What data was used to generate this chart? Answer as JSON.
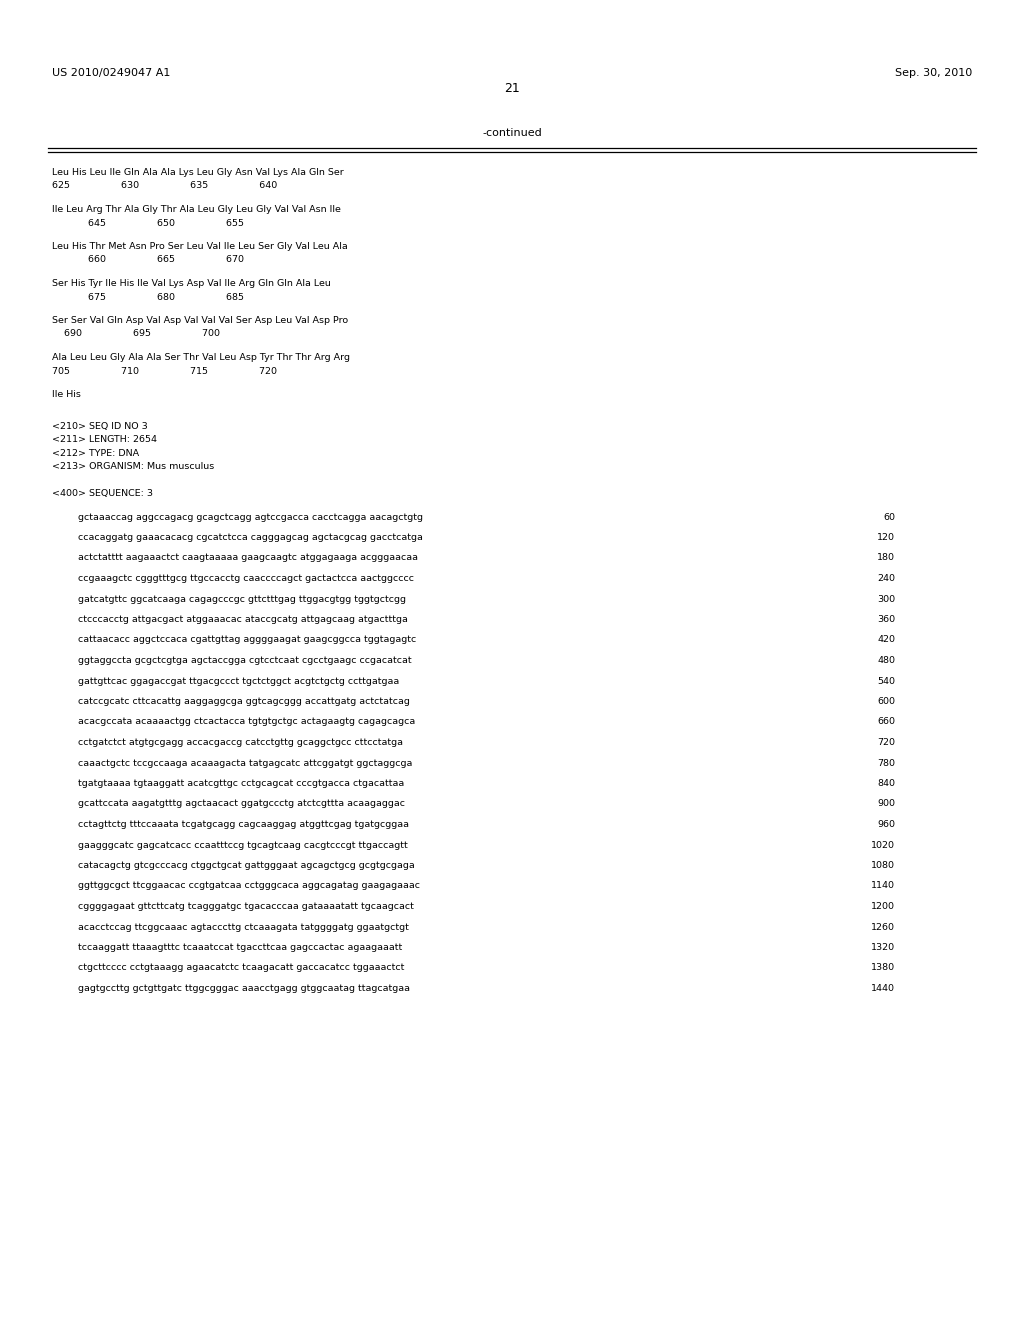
{
  "background_color": "#ffffff",
  "header_left": "US 2010/0249047 A1",
  "header_right": "Sep. 30, 2010",
  "page_number": "21",
  "continued_label": "-continued",
  "monospace_font_size": 6.8,
  "header_font_size": 8.0,
  "page_num_font_size": 9.0,
  "amino_blocks": [
    [
      "Leu His Leu Ile Gln Ala Ala Lys Leu Gly Asn Val Lys Ala Gln Ser",
      "625                 630                 635                 640"
    ],
    [
      "Ile Leu Arg Thr Ala Gly Thr Ala Leu Gly Leu Gly Val Val Asn Ile",
      "            645                 650                 655"
    ],
    [
      "Leu His Thr Met Asn Pro Ser Leu Val Ile Leu Ser Gly Val Leu Ala",
      "            660                 665                 670"
    ],
    [
      "Ser His Tyr Ile His Ile Val Lys Asp Val Ile Arg Gln Gln Ala Leu",
      "            675                 680                 685"
    ],
    [
      "Ser Ser Val Gln Asp Val Asp Val Val Val Ser Asp Leu Val Asp Pro",
      "    690                 695                 700"
    ],
    [
      "Ala Leu Leu Gly Ala Ala Ser Thr Val Leu Asp Tyr Thr Thr Arg Arg",
      "705                 710                 715                 720"
    ],
    [
      "Ile His"
    ]
  ],
  "metadata_lines": [
    "<210> SEQ ID NO 3",
    "<211> LENGTH: 2654",
    "<212> TYPE: DNA",
    "<213> ORGANISM: Mus musculus",
    "",
    "<400> SEQUENCE: 3"
  ],
  "dna_sequences": [
    {
      "seq": "gctaaaccag aggccagacg gcagctcagg agtccgacca cacctcagga aacagctgtg",
      "num": "60"
    },
    {
      "seq": "ccacaggatg gaaacacacg cgcatctcca cagggagcag agctacgcag gacctcatga",
      "num": "120"
    },
    {
      "seq": "actctatttt aagaaactct caagtaaaaa gaagcaagtc atggagaaga acgggaacaa",
      "num": "180"
    },
    {
      "seq": "ccgaaagctc cgggtttgcg ttgccacctg caaccccagct gactactcca aactggcccc",
      "num": "240"
    },
    {
      "seq": "gatcatgttc ggcatcaaga cagagcccgc gttctttgag ttggacgtgg tggtgctcgg",
      "num": "300"
    },
    {
      "seq": "ctcccacctg attgacgact atggaaacac ataccgcatg attgagcaag atgactttga",
      "num": "360"
    },
    {
      "seq": "cattaacacc aggctccaca cgattgttag aggggaagat gaagcggcca tggtagagtc",
      "num": "420"
    },
    {
      "seq": "ggtaggccta gcgctcgtga agctaccgga cgtcctcaat cgcctgaagc ccgacatcat",
      "num": "480"
    },
    {
      "seq": "gattgttcac ggagaccgat ttgacgccct tgctctggct acgtctgctg ccttgatgaa",
      "num": "540"
    },
    {
      "seq": "catccgcatc cttcacattg aaggaggcga ggtcagcggg accattgatg actctatcag",
      "num": "600"
    },
    {
      "seq": "acacgccata acaaaactgg ctcactacca tgtgtgctgc actagaagtg cagagcagca",
      "num": "660"
    },
    {
      "seq": "cctgatctct atgtgcgagg accacgaccg catcctgttg gcaggctgcc cttcctatga",
      "num": "720"
    },
    {
      "seq": "caaactgctc tccgccaaga acaaagacta tatgagcatc attcggatgt ggctaggcga",
      "num": "780"
    },
    {
      "seq": "tgatgtaaaa tgtaaggatt acatcgttgc cctgcagcat cccgtgacca ctgacattaa",
      "num": "840"
    },
    {
      "seq": "gcattccata aagatgtttg agctaacact ggatgccctg atctcgttta acaagaggac",
      "num": "900"
    },
    {
      "seq": "cctagttctg tttccaaata tcgatgcagg cagcaaggag atggttcgag tgatgcggaa",
      "num": "960"
    },
    {
      "seq": "gaagggcatc gagcatcacc ccaatttccg tgcagtcaag cacgtcccgt ttgaccagtt",
      "num": "1020"
    },
    {
      "seq": "catacagctg gtcgcccacg ctggctgcat gattgggaat agcagctgcg gcgtgcgaga",
      "num": "1080"
    },
    {
      "seq": "ggttggcgct ttcggaacac ccgtgatcaa cctgggcaca aggcagatag gaagagaaac",
      "num": "1140"
    },
    {
      "seq": "cggggagaat gttcttcatg tcagggatgc tgacacccaa gataaaatatt tgcaagcact",
      "num": "1200"
    },
    {
      "seq": "acacctccag ttcggcaaac agtacccttg ctcaaagata tatggggatg ggaatgctgt",
      "num": "1260"
    },
    {
      "seq": "tccaaggatt ttaaagtttc tcaaatccat tgaccttcaa gagccactac agaagaaatt",
      "num": "1320"
    },
    {
      "seq": "ctgcttcccc cctgtaaagg agaacatctc tcaagacatt gaccacatcc tggaaactct",
      "num": "1380"
    },
    {
      "seq": "gagtgccttg gctgttgatc ttggcgggac aaacctgagg gtggcaatag ttagcatgaa",
      "num": "1440"
    }
  ]
}
